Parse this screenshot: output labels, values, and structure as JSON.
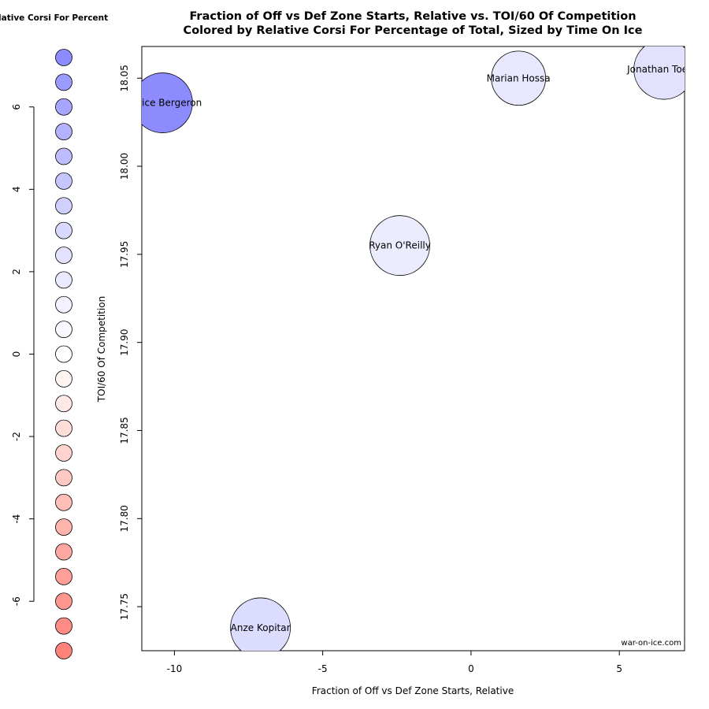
{
  "chart_data": [
    {
      "type": "scatter",
      "subtype": "bubble",
      "title": "Fraction of Off vs Def Zone Starts, Relative vs. TOI/60 Of Competition",
      "subtitle": "Colored by Relative Corsi For Percentage of Total, Sized by Time On Ice",
      "xlabel": "Fraction of Off vs Def Zone Starts, Relative",
      "ylabel": "TOI/60 Of Competition",
      "xlim": [
        -11.1,
        7.2
      ],
      "ylim": [
        17.725,
        18.068
      ],
      "x_ticks": [
        "-10",
        "-5",
        "0",
        "5"
      ],
      "y_ticks": [
        "17.75",
        "17.80",
        "17.85",
        "17.90",
        "17.95",
        "18.00",
        "18.05"
      ],
      "grid": false,
      "points": [
        {
          "label": "Patrice Bergeron",
          "x": -10.4,
          "y": 18.036,
          "size": 1.0,
          "color": "#8c8cff"
        },
        {
          "label": "Marian Hossa",
          "x": 1.6,
          "y": 18.05,
          "size": 0.82,
          "color": "#e8e8ff"
        },
        {
          "label": "Jonathan Toews",
          "x": 6.5,
          "y": 18.055,
          "size": 1.0,
          "color": "#e2e2ff"
        },
        {
          "label": "Ryan O'Reilly",
          "x": -2.4,
          "y": 17.955,
          "size": 1.0,
          "color": "#ececff"
        },
        {
          "label": "Anze Kopitar",
          "x": -7.1,
          "y": 17.738,
          "size": 1.0,
          "color": "#dcdcff"
        }
      ],
      "credit": "war-on-ice.com"
    },
    {
      "type": "scatter",
      "role": "color-legend",
      "title": "Relative Corsi For Percent",
      "ylim": [
        -7.4,
        7.4
      ],
      "y_ticks": [
        "6",
        "4",
        "2",
        "0",
        "-2",
        "-4",
        "-6"
      ],
      "values": [
        7.2,
        6.6,
        6.0,
        5.4,
        4.8,
        4.2,
        3.6,
        3.0,
        2.4,
        1.8,
        1.2,
        0.6,
        0.0,
        -0.6,
        -1.2,
        -1.8,
        -2.4,
        -3.0,
        -3.6,
        -4.2,
        -4.8,
        -5.4,
        -6.0,
        -6.6,
        -7.2
      ],
      "colors": [
        "#8c8cff",
        "#9a9aff",
        "#a6a6ff",
        "#b2b2ff",
        "#bcbcff",
        "#c6c6ff",
        "#d0d0ff",
        "#d9d9ff",
        "#e2e2ff",
        "#eaeaff",
        "#f1f1ff",
        "#f8f8ff",
        "#ffffff",
        "#fff4f2",
        "#ffe9e6",
        "#ffdeda",
        "#ffd4cf",
        "#ffc9c3",
        "#ffbeb8",
        "#ffb3ad",
        "#ffa8a1",
        "#ff9f98",
        "#ff968f",
        "#ff8c85",
        "#ff837b"
      ]
    }
  ]
}
